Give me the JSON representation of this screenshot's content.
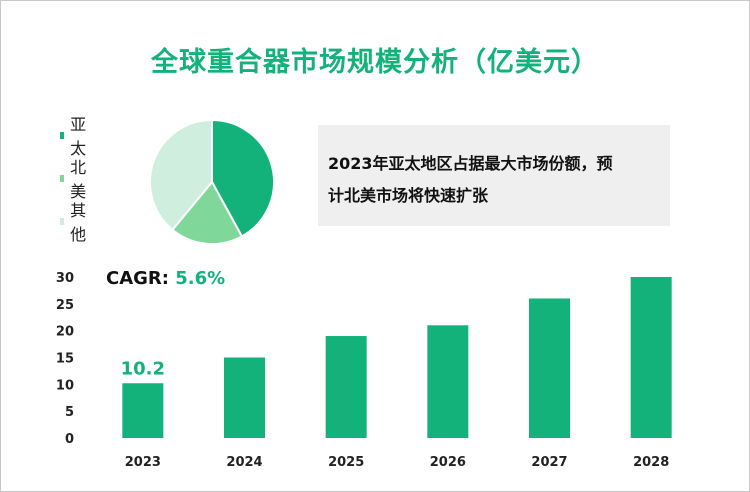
{
  "title": "全球重合器市场规模分析（亿美元）",
  "legend": [
    {
      "label": "亚太",
      "color": "#13b27b"
    },
    {
      "label": "北美",
      "color": "#7fd89a"
    },
    {
      "label": "其他",
      "color": "#cfeedd"
    }
  ],
  "callout": {
    "line1": "2023年亚太地区占据最大市场份额，预",
    "line2": "计北美市场将快速扩张"
  },
  "cagr": {
    "label": "CAGR: ",
    "value": "5.6%"
  },
  "colors": {
    "accent": "#13b27b",
    "axis_text": "#222222"
  },
  "chart_data": [
    {
      "type": "pie",
      "categories": [
        "亚太",
        "北美",
        "其他"
      ],
      "values": [
        42,
        19,
        39
      ],
      "colors": [
        "#13b27b",
        "#7fd89a",
        "#cfeedd"
      ]
    },
    {
      "type": "bar",
      "categories": [
        "2023",
        "2024",
        "2025",
        "2026",
        "2027",
        "2028"
      ],
      "values": [
        10.2,
        15.0,
        19.0,
        21.0,
        26.0,
        30.0
      ],
      "data_labels": [
        "10.2",
        "",
        "",
        "",
        "",
        ""
      ],
      "ylim": [
        0,
        30
      ],
      "yticks": [
        0,
        5,
        10,
        15,
        20,
        25,
        30
      ],
      "color": "#13b27b",
      "grid": false
    }
  ]
}
